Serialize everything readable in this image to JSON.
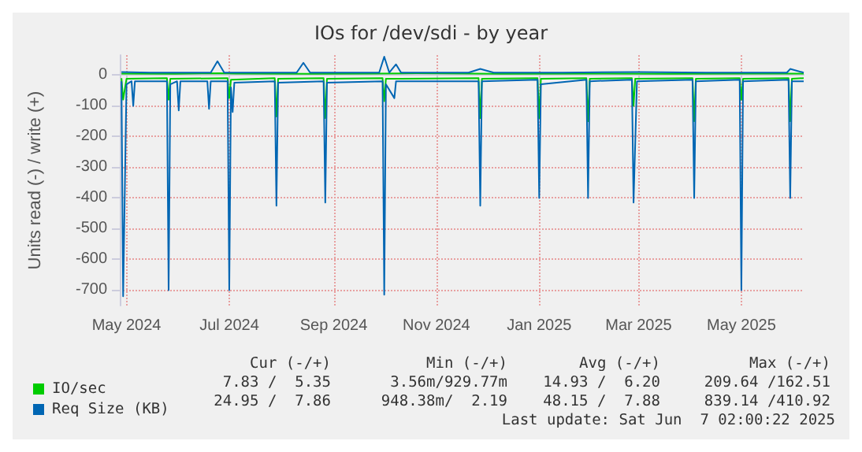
{
  "chart_data": {
    "type": "line",
    "title": "IOs for /dev/sdi - by year",
    "ylabel": "Units read (-) / write (+)",
    "xlim": [
      "2024-04-27",
      "2025-06-07"
    ],
    "xticks": [
      {
        "value": "2024-05-01",
        "label": "May 2024"
      },
      {
        "value": "2024-07-01",
        "label": "Jul 2024"
      },
      {
        "value": "2024-09-01",
        "label": "Sep 2024"
      },
      {
        "value": "2024-11-01",
        "label": "Nov 2024"
      },
      {
        "value": "2025-01-01",
        "label": "Jan 2025"
      },
      {
        "value": "2025-03-01",
        "label": "Mar 2025"
      },
      {
        "value": "2025-05-01",
        "label": "May 2025"
      }
    ],
    "ylim": [
      -750,
      65
    ],
    "yticks": [
      -700,
      -600,
      -500,
      -400,
      -300,
      -200,
      -100,
      0
    ],
    "grid": true,
    "legend": "bottom left",
    "marker": "none",
    "line_style": "solid",
    "series": [
      {
        "name": "IO/sec",
        "color": "#00cc00",
        "x": [
          "2024-04-28",
          "2024-04-29",
          "2024-05-01",
          "2024-05-25",
          "2024-05-26",
          "2024-05-27",
          "2024-06-30",
          "2024-07-01",
          "2024-07-02",
          "2024-07-28",
          "2024-07-29",
          "2024-07-30",
          "2024-08-26",
          "2024-08-27",
          "2024-08-28",
          "2024-09-30",
          "2024-10-01",
          "2024-10-02",
          "2024-11-26",
          "2024-11-27",
          "2024-11-28",
          "2024-12-31",
          "2025-01-01",
          "2025-01-02",
          "2025-01-29",
          "2025-01-30",
          "2025-01-31",
          "2025-02-25",
          "2025-02-26",
          "2025-02-27",
          "2025-04-02",
          "2025-04-03",
          "2025-04-04",
          "2025-04-30",
          "2025-05-01",
          "2025-05-02",
          "2025-05-29",
          "2025-05-30",
          "2025-05-31",
          "2025-06-07"
        ],
        "values": [
          -10,
          -80,
          -12,
          -10,
          -80,
          -12,
          -10,
          -75,
          -15,
          -10,
          -135,
          -12,
          -10,
          -140,
          -12,
          -10,
          -85,
          -12,
          -10,
          -140,
          -12,
          -10,
          -140,
          -12,
          -10,
          -150,
          -12,
          -10,
          -100,
          -12,
          -10,
          -150,
          -12,
          -10,
          -80,
          -12,
          -10,
          -150,
          -12,
          -10
        ]
      },
      {
        "color": "#00cc00",
        "x": [
          "2024-04-28",
          "2024-05-30",
          "2024-06-25",
          "2024-07-05",
          "2024-08-20",
          "2024-09-25",
          "2024-10-20",
          "2024-12-10",
          "2025-02-10",
          "2025-03-20",
          "2025-05-10",
          "2025-06-07"
        ],
        "values": [
          5,
          4,
          6,
          5,
          4,
          5,
          6,
          4,
          5,
          4,
          5,
          5
        ]
      },
      {
        "name": "Req Size (KB)",
        "color": "#0066b3",
        "x": [
          "2024-04-28",
          "2024-04-29",
          "2024-05-01",
          "2024-05-04",
          "2024-05-05",
          "2024-05-06",
          "2024-05-25",
          "2024-05-26",
          "2024-05-27",
          "2024-05-31",
          "2024-06-01",
          "2024-06-02",
          "2024-06-18",
          "2024-06-19",
          "2024-06-20",
          "2024-06-30",
          "2024-07-01",
          "2024-07-02",
          "2024-07-03",
          "2024-07-04",
          "2024-07-28",
          "2024-07-29",
          "2024-07-30",
          "2024-08-26",
          "2024-08-27",
          "2024-08-28",
          "2024-09-30",
          "2024-10-01",
          "2024-10-02",
          "2024-10-07",
          "2024-10-08",
          "2024-11-26",
          "2024-11-27",
          "2024-11-28",
          "2024-12-31",
          "2025-01-01",
          "2025-01-02",
          "2025-01-29",
          "2025-01-30",
          "2025-01-31",
          "2025-02-25",
          "2025-02-26",
          "2025-02-27",
          "2025-02-28",
          "2025-04-02",
          "2025-04-03",
          "2025-04-04",
          "2025-04-30",
          "2025-05-01",
          "2025-05-02",
          "2025-05-29",
          "2025-05-30",
          "2025-05-31",
          "2025-06-07"
        ],
        "values": [
          -20,
          -720,
          -30,
          -20,
          -100,
          -20,
          -20,
          -700,
          -30,
          -20,
          -115,
          -20,
          -20,
          -110,
          -20,
          -20,
          -700,
          -40,
          -120,
          -25,
          -20,
          -425,
          -25,
          -20,
          -415,
          -25,
          -20,
          -715,
          -30,
          -75,
          -20,
          -20,
          -425,
          -20,
          -15,
          -400,
          -30,
          -15,
          -400,
          -20,
          -15,
          -415,
          -220,
          -20,
          -15,
          -400,
          -20,
          -15,
          -700,
          -20,
          -15,
          -400,
          -20,
          -20
        ]
      },
      {
        "color": "#0066b3",
        "x": [
          "2024-04-28",
          "2024-05-15",
          "2024-06-20",
          "2024-06-24",
          "2024-06-28",
          "2024-07-20",
          "2024-08-10",
          "2024-08-14",
          "2024-08-18",
          "2024-09-20",
          "2024-09-28",
          "2024-10-01",
          "2024-10-04",
          "2024-10-08",
          "2024-10-11",
          "2024-10-14",
          "2024-11-20",
          "2024-11-27",
          "2024-12-05",
          "2025-01-15",
          "2025-03-01",
          "2025-04-10",
          "2025-05-28",
          "2025-05-30",
          "2025-06-07"
        ],
        "values": [
          10,
          8,
          8,
          45,
          8,
          8,
          8,
          40,
          8,
          8,
          8,
          60,
          8,
          35,
          8,
          8,
          8,
          20,
          8,
          8,
          10,
          8,
          8,
          20,
          8
        ]
      }
    ],
    "annotations": [
      "Cur (-/+)",
      "Min (-/+)",
      "Avg (-/+)",
      "Max (-/+)",
      "7.83 /  5.35",
      "3.56m/929.77m",
      "14.93 /  6.20",
      "209.64 /162.51",
      "24.95 /  7.86",
      "948.38m/  2.19",
      "48.15 /  7.88",
      "839.14 /410.92",
      "Last update: Sat Jun  7 02:00:22 2025"
    ]
  }
}
